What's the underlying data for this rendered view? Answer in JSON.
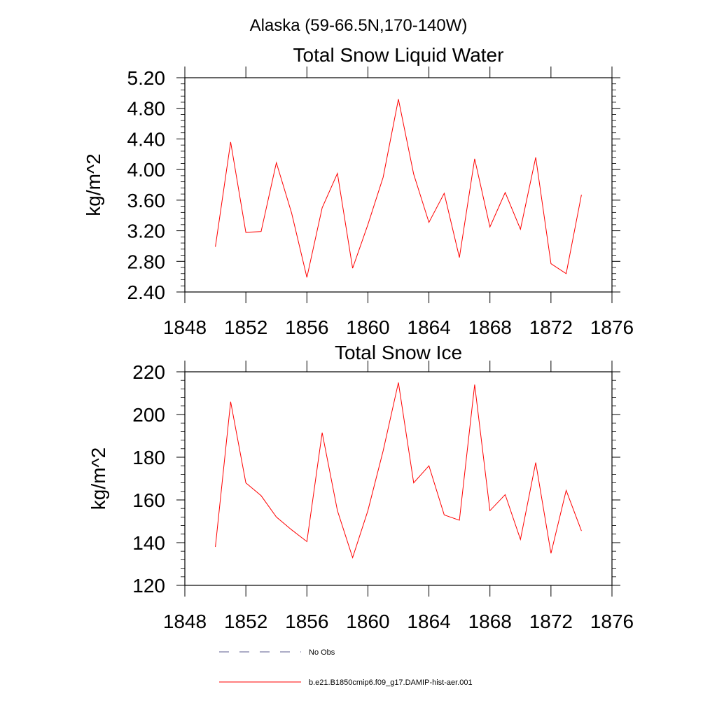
{
  "figure_title": "Alaska (59-66.5N,170-140W)",
  "legend": {
    "obs_label": "No Obs",
    "model_label": "b.e21.B1850cmip6.f09_g17.DAMIP-hist-aer.001",
    "model_color": "#ff0000",
    "obs_color": "#5a5a8c"
  },
  "chart_data": [
    {
      "type": "line",
      "title": "Total Snow Liquid Water",
      "xlabel": "",
      "ylabel": "kg/m^2",
      "xlim": [
        1848,
        1876
      ],
      "ylim": [
        2.4,
        5.2
      ],
      "xticks": [
        1848,
        1852,
        1856,
        1860,
        1864,
        1868,
        1872,
        1876
      ],
      "xtick_labels": [
        "1848",
        "1852",
        "1856",
        "1860",
        "1864",
        "1868",
        "1872",
        "1876"
      ],
      "yticks": [
        2.4,
        2.8,
        3.2,
        3.6,
        4.0,
        4.4,
        4.8,
        5.2
      ],
      "ytick_labels": [
        "2.40",
        "2.80",
        "3.20",
        "3.60",
        "4.00",
        "4.40",
        "4.80",
        "5.20"
      ],
      "x": [
        1850,
        1851,
        1852,
        1853,
        1854,
        1855,
        1856,
        1857,
        1858,
        1859,
        1860,
        1861,
        1862,
        1863,
        1864,
        1865,
        1866,
        1867,
        1868,
        1869,
        1870,
        1871,
        1872,
        1873,
        1874
      ],
      "series": [
        {
          "name": "b.e21.B1850cmip6.f09_g17.DAMIP-hist-aer.001",
          "color": "#ff0000",
          "values": [
            2.99,
            4.36,
            3.18,
            3.19,
            4.09,
            3.43,
            2.59,
            3.5,
            3.95,
            2.71,
            3.28,
            3.9,
            4.92,
            3.94,
            3.31,
            3.69,
            2.85,
            4.14,
            3.25,
            3.7,
            3.22,
            4.16,
            2.77,
            2.64,
            3.67
          ]
        }
      ]
    },
    {
      "type": "line",
      "title": "Total Snow Ice",
      "xlabel": "",
      "ylabel": "kg/m^2",
      "xlim": [
        1848,
        1876
      ],
      "ylim": [
        120,
        220
      ],
      "xticks": [
        1848,
        1852,
        1856,
        1860,
        1864,
        1868,
        1872,
        1876
      ],
      "xtick_labels": [
        "1848",
        "1852",
        "1856",
        "1860",
        "1864",
        "1868",
        "1872",
        "1876"
      ],
      "yticks": [
        120,
        140,
        160,
        180,
        200,
        220
      ],
      "ytick_labels": [
        "120",
        "140",
        "160",
        "180",
        "200",
        "220"
      ],
      "x": [
        1850,
        1851,
        1852,
        1853,
        1854,
        1855,
        1856,
        1857,
        1858,
        1859,
        1860,
        1861,
        1862,
        1863,
        1864,
        1865,
        1866,
        1867,
        1868,
        1869,
        1870,
        1871,
        1872,
        1873,
        1874
      ],
      "series": [
        {
          "name": "b.e21.B1850cmip6.f09_g17.DAMIP-hist-aer.001",
          "color": "#ff0000",
          "values": [
            138,
            206,
            168,
            162,
            152,
            146,
            140.5,
            191.5,
            155,
            133,
            155,
            183,
            215,
            168,
            176,
            153,
            150.5,
            214,
            155,
            162.5,
            141.5,
            177.5,
            135,
            164.5,
            145.5
          ]
        }
      ]
    }
  ]
}
